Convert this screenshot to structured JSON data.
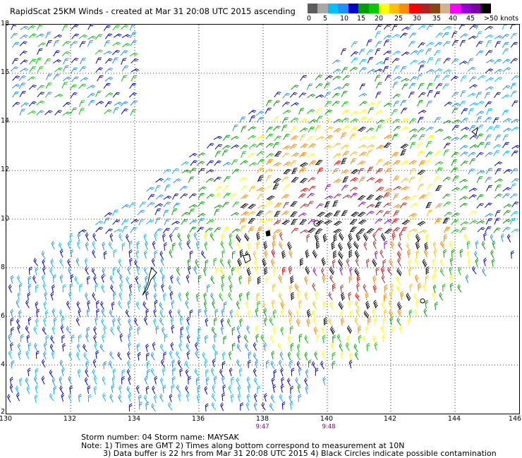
{
  "header": {
    "title": "RapidScat 25KM Winds - created at Mar 31 20:08 UTC 2015 ascending"
  },
  "legend": {
    "colors": [
      "#5c5c5c",
      "#a8a8a8",
      "#00bfff",
      "#1e90ff",
      "#0000cd",
      "#00a000",
      "#00cc00",
      "#ffff00",
      "#ffbf00",
      "#ff8c00",
      "#ff0000",
      "#b22222",
      "#8b4513",
      "#d2b48c",
      "#ff00ff",
      "#9400d3",
      "#7b00a3",
      "#000000"
    ],
    "labels": [
      "0",
      "5",
      "10",
      "15",
      "20",
      "25",
      "30",
      "35",
      "40",
      "45",
      ">50 knots"
    ]
  },
  "map": {
    "x_labels": [
      "130",
      "132",
      "134",
      "136",
      "138",
      "140",
      "142",
      "144",
      "146"
    ],
    "y_labels": [
      "18",
      "16",
      "14",
      "12",
      "10",
      "8",
      "6",
      "4",
      "2"
    ],
    "times": [
      "9:47",
      "9:48"
    ]
  },
  "notes": {
    "line1": "Storm number: 04     Storm name: MAYSAK",
    "line2": "Note: 1) Times are GMT  2) Times along bottom correspond to measurement at 10N",
    "line3": "3) Data buffer is 22 hrs from Mar 31 20:08 UTC 2015  4) Black Circles indicate possible contamination"
  }
}
